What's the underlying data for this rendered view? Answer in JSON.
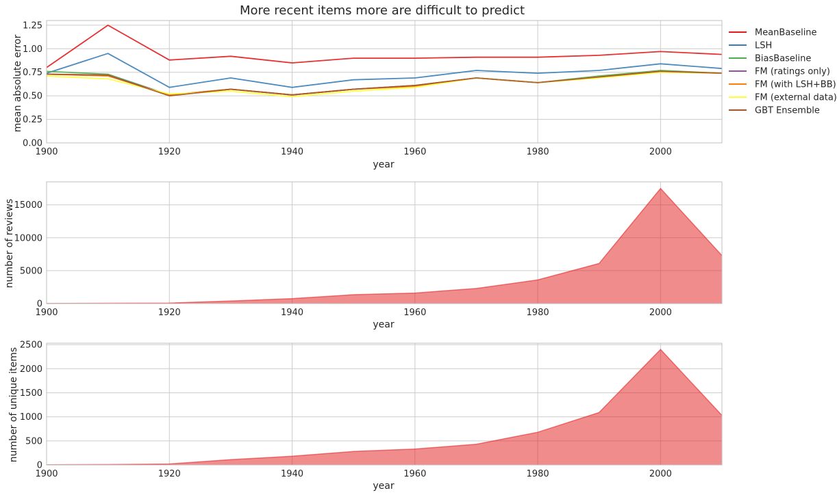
{
  "title": "More recent items more are difficult to predict",
  "colors": {
    "MeanBaseline": "#e41a1c",
    "LSH": "#377eb8",
    "BiasBaseline": "#4daf4a",
    "FM (ratings only)": "#984ea3",
    "FM (with LSH+BB)": "#ff7f00",
    "FM (external data)": "#ffff33",
    "GBT Ensemble": "#a65628",
    "area": "#e41a1c",
    "grid": "#cccccc",
    "axis": "#bfbfbf"
  },
  "chart_data": [
    {
      "type": "line",
      "xlabel": "year",
      "ylabel": "mean absolute error",
      "xlim": [
        1900,
        2010
      ],
      "ylim": [
        0,
        1.3
      ],
      "xticks": [
        "1900",
        "1920",
        "1940",
        "1960",
        "1980",
        "2000"
      ],
      "yticks": [
        "0.00",
        "0.25",
        "0.50",
        "0.75",
        "1.00",
        "1.25"
      ],
      "grid": true,
      "legend": "outside-right",
      "x": [
        1900,
        1910,
        1920,
        1930,
        1940,
        1950,
        1960,
        1970,
        1980,
        1990,
        2000,
        2010
      ],
      "series": [
        {
          "name": "MeanBaseline",
          "values": [
            0.8,
            1.25,
            0.88,
            0.92,
            0.85,
            0.9,
            0.9,
            0.91,
            0.91,
            0.93,
            0.97,
            0.94
          ]
        },
        {
          "name": "LSH",
          "values": [
            0.74,
            0.95,
            0.59,
            0.69,
            0.59,
            0.67,
            0.69,
            0.77,
            0.74,
            0.77,
            0.84,
            0.79
          ]
        },
        {
          "name": "BiasBaseline",
          "values": [
            0.76,
            0.73,
            0.51,
            0.57,
            0.51,
            0.57,
            0.61,
            0.69,
            0.64,
            0.71,
            0.77,
            0.74
          ]
        },
        {
          "name": "FM (ratings only)",
          "values": [
            0.73,
            0.72,
            0.51,
            0.57,
            0.51,
            0.57,
            0.61,
            0.69,
            0.64,
            0.7,
            0.76,
            0.74
          ]
        },
        {
          "name": "FM (with LSH+BB)",
          "values": [
            0.73,
            0.71,
            0.51,
            0.57,
            0.51,
            0.57,
            0.6,
            0.69,
            0.64,
            0.7,
            0.76,
            0.74
          ]
        },
        {
          "name": "FM (external data)",
          "values": [
            0.71,
            0.68,
            0.52,
            0.55,
            0.49,
            0.55,
            0.59,
            0.69,
            0.64,
            0.69,
            0.75,
            0.74
          ]
        },
        {
          "name": "GBT Ensemble",
          "values": [
            0.73,
            0.72,
            0.5,
            0.57,
            0.51,
            0.57,
            0.61,
            0.69,
            0.64,
            0.7,
            0.76,
            0.74
          ]
        }
      ]
    },
    {
      "type": "area",
      "xlabel": "year",
      "ylabel": "number of reviews",
      "xlim": [
        1900,
        2010
      ],
      "ylim": [
        0,
        18500
      ],
      "xticks": [
        "1900",
        "1920",
        "1940",
        "1960",
        "1980",
        "2000"
      ],
      "yticks": [
        "0",
        "5000",
        "10000",
        "15000"
      ],
      "grid": true,
      "x": [
        1900,
        1910,
        1920,
        1930,
        1940,
        1950,
        1960,
        1970,
        1980,
        1990,
        2000,
        2010
      ],
      "values": [
        10,
        50,
        80,
        400,
        750,
        1350,
        1600,
        2300,
        3600,
        6100,
        17500,
        7300
      ]
    },
    {
      "type": "area",
      "xlabel": "year",
      "ylabel": "number of unique items",
      "xlim": [
        1900,
        2010
      ],
      "ylim": [
        0,
        2530
      ],
      "xticks": [
        "1900",
        "1920",
        "1940",
        "1960",
        "1980",
        "2000"
      ],
      "yticks": [
        "0",
        "500",
        "1000",
        "1500",
        "2000",
        "2500"
      ],
      "grid": true,
      "x": [
        1900,
        1910,
        1920,
        1930,
        1940,
        1950,
        1960,
        1970,
        1980,
        1990,
        2000,
        2010
      ],
      "values": [
        3,
        8,
        20,
        110,
        180,
        280,
        330,
        430,
        680,
        1090,
        2400,
        1030
      ]
    }
  ]
}
